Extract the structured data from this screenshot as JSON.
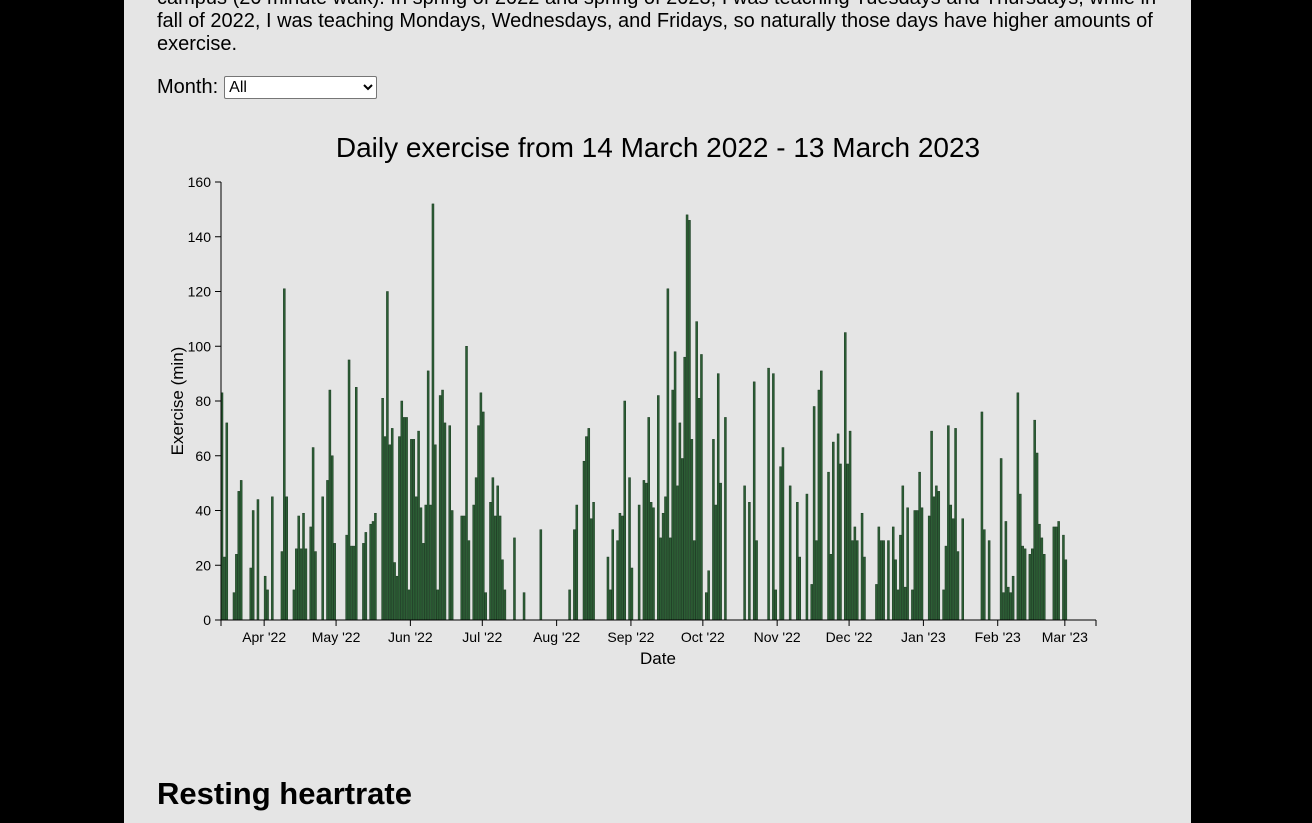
{
  "intro": {
    "line1": "campus (20 minute walk). In spring of 2022 and spring of 2023, I was teaching Tuesdays and Thursdays, while in",
    "line2": "fall of 2022, I was teaching Mondays, Wednesdays, and Fridays, so naturally those days have higher amounts of",
    "line3": "exercise."
  },
  "filter": {
    "label": "Month:",
    "selected": "All"
  },
  "chart_data": {
    "type": "bar",
    "title": "Daily exercise from 14 March 2022 - 13 March 2023",
    "xlabel": "Date",
    "ylabel": "Exercise (min)",
    "x_start": "2022-03-14",
    "x_end": "2023-03-13",
    "ylim": [
      0,
      160
    ],
    "yticks": [
      0,
      20,
      40,
      60,
      80,
      100,
      120,
      140,
      160
    ],
    "xticks": [
      {
        "date": "2022-04-01",
        "label": "Apr '22"
      },
      {
        "date": "2022-05-01",
        "label": "May '22"
      },
      {
        "date": "2022-06-01",
        "label": "Jun '22"
      },
      {
        "date": "2022-07-01",
        "label": "Jul '22"
      },
      {
        "date": "2022-08-01",
        "label": "Aug '22"
      },
      {
        "date": "2022-09-01",
        "label": "Sep '22"
      },
      {
        "date": "2022-10-01",
        "label": "Oct '22"
      },
      {
        "date": "2022-11-01",
        "label": "Nov '22"
      },
      {
        "date": "2022-12-01",
        "label": "Dec '22"
      },
      {
        "date": "2023-01-01",
        "label": "Jan '23"
      },
      {
        "date": "2023-02-01",
        "label": "Feb '23"
      },
      {
        "date": "2023-03-01",
        "label": "Mar '23"
      }
    ],
    "bar_color": "#2c5e35",
    "bar_stroke": "#1b3a21",
    "values": [
      83,
      23,
      72,
      0,
      0,
      10,
      24,
      47,
      51,
      0,
      0,
      0,
      19,
      40,
      0,
      44,
      0,
      0,
      16,
      11,
      0,
      45,
      0,
      0,
      0,
      25,
      121,
      45,
      0,
      0,
      11,
      26,
      38,
      26,
      39,
      26,
      0,
      34,
      63,
      25,
      0,
      0,
      45,
      0,
      51,
      84,
      60,
      28,
      0,
      0,
      0,
      0,
      31,
      95,
      27,
      27,
      85,
      0,
      0,
      28,
      32,
      0,
      35,
      36,
      39,
      0,
      0,
      81,
      67,
      120,
      64,
      70,
      21,
      16,
      67,
      80,
      74,
      74,
      11,
      66,
      66,
      45,
      69,
      41,
      28,
      42,
      91,
      42,
      152,
      64,
      11,
      82,
      84,
      72,
      0,
      71,
      40,
      0,
      0,
      0,
      38,
      38,
      100,
      29,
      0,
      42,
      52,
      71,
      83,
      76,
      10,
      0,
      43,
      52,
      38,
      49,
      38,
      22,
      11,
      0,
      0,
      0,
      30,
      0,
      0,
      0,
      10,
      0,
      0,
      0,
      0,
      0,
      0,
      33,
      0,
      0,
      0,
      0,
      0,
      0,
      0,
      0,
      0,
      0,
      0,
      11,
      0,
      33,
      42,
      0,
      0,
      58,
      67,
      70,
      37,
      43,
      0,
      0,
      0,
      0,
      0,
      23,
      11,
      33,
      0,
      29,
      39,
      38,
      80,
      0,
      52,
      19,
      0,
      0,
      42,
      0,
      51,
      50,
      74,
      43,
      41,
      0,
      82,
      30,
      39,
      45,
      121,
      30,
      84,
      98,
      49,
      72,
      59,
      96,
      148,
      146,
      66,
      29,
      109,
      81,
      97,
      0,
      10,
      18,
      0,
      66,
      42,
      90,
      50,
      0,
      74,
      0,
      0,
      0,
      0,
      0,
      0,
      0,
      49,
      0,
      43,
      0,
      87,
      29,
      0,
      0,
      0,
      0,
      92,
      0,
      90,
      11,
      0,
      56,
      63,
      0,
      0,
      49,
      0,
      0,
      43,
      23,
      0,
      0,
      46,
      0,
      13,
      78,
      29,
      84,
      91,
      0,
      0,
      54,
      24,
      65,
      0,
      68,
      57,
      0,
      105,
      57,
      69,
      29,
      34,
      29,
      0,
      39,
      23,
      0,
      0,
      0,
      0,
      13,
      34,
      29,
      29,
      0,
      29,
      0,
      34,
      22,
      11,
      31,
      49,
      12,
      41,
      0,
      11,
      40,
      40,
      54,
      41,
      0,
      0,
      38,
      69,
      45,
      49,
      47,
      0,
      11,
      27,
      71,
      42,
      37,
      70,
      25,
      0,
      37,
      0,
      0,
      0,
      0,
      0,
      0,
      0,
      76,
      33,
      0,
      29,
      0,
      0,
      0,
      0,
      59,
      10,
      36,
      12,
      10,
      16,
      0,
      83,
      46,
      27,
      26,
      0,
      24,
      26,
      73,
      61,
      35,
      30,
      24,
      0,
      0,
      0,
      34,
      34,
      36,
      0,
      31,
      22
    ]
  },
  "section": {
    "heading": "Resting heartrate"
  }
}
